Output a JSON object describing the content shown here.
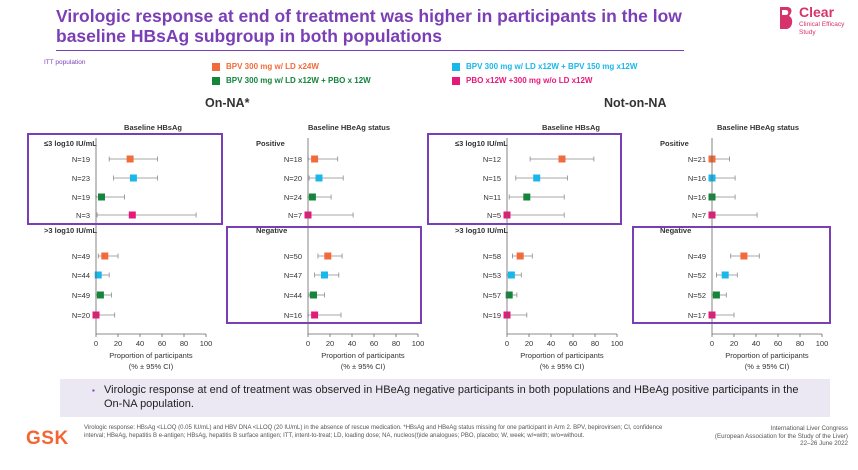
{
  "slide": {
    "title": "Virologic response at end of treatment was higher in participants in the low baseline HBsAg subgroup in both populations",
    "itt_label": "ITT population",
    "callout_bullet": "▪",
    "callout_text": "Virologic response at end of treatment was observed in HBeAg negative participants in both populations and HBeAg positive participants in the On-NA population.",
    "footnote": "Virologic response: HBsAg <LLOQ (0.05 IU/mL) and HBV DNA <LLOQ (20 IU/mL) in the absence of rescue medication. *HBsAg and HBeAg status missing for one participant in Arm 2. BPV, bepirovirsen; CI, confidence interval; HBeAg, hepatitis B e-antigen; HBsAg, hepatitis B surface antigen; ITT, intent-to-treat; LD, loading dose; NA, nucleos(t)ide analogues; PBO, placebo; W, week; w/=with; w/o=without.",
    "gsk_logo": "GSK",
    "congress_line1": "International Liver Congress",
    "congress_line2": "(European Association for the Study of the Liver)",
    "congress_line3": "22–26 June 2022",
    "brand_name": "Clear",
    "brand_sub": "Clinical Efficacy Study"
  },
  "colors": {
    "arm1": "#f26b3a",
    "arm2": "#1ab7ea",
    "arm3": "#14853b",
    "arm4": "#e6197a",
    "purple": "#7b3fb5",
    "brand": "#d6336c"
  },
  "legend": [
    {
      "label": "BPV 300 mg w/ LD x24W",
      "color_key": "arm1"
    },
    {
      "label": "BPV 300 mg w/ LD x12W + BPV 150 mg x12W",
      "color_key": "arm2"
    },
    {
      "label": "BPV 300 mg w/ LD x12W + PBO x 12W",
      "color_key": "arm3"
    },
    {
      "label": "PBO x12W +300 mg w/o LD x12W",
      "color_key": "arm4"
    }
  ],
  "chart_data": {
    "type": "forest",
    "x_label_line1": "Proportion of participants",
    "x_label_line2": "(% ± 95% CI)",
    "x_ticks": [
      "0",
      "20",
      "40",
      "60",
      "80",
      "100"
    ],
    "xlim": [
      0,
      100
    ],
    "populations": [
      {
        "name": "On-NA*",
        "panels": [
          {
            "title": "Baseline HBsAg",
            "groups": [
              {
                "label": "≤3 log10 IU/mL",
                "highlighted": true,
                "rows": [
                  {
                    "n": "N=19",
                    "arm": "arm1",
                    "value": 31,
                    "lo": 12,
                    "hi": 56
                  },
                  {
                    "n": "N=23",
                    "arm": "arm2",
                    "value": 34,
                    "lo": 16,
                    "hi": 56
                  },
                  {
                    "n": "N=19",
                    "arm": "arm3",
                    "value": 5,
                    "lo": 0,
                    "hi": 26
                  },
                  {
                    "n": "N=3",
                    "arm": "arm4",
                    "value": 33,
                    "lo": 1,
                    "hi": 91
                  }
                ]
              },
              {
                "label": ">3 log10 IU/mL",
                "highlighted": false,
                "rows": [
                  {
                    "n": "N=49",
                    "arm": "arm1",
                    "value": 8,
                    "lo": 2,
                    "hi": 20
                  },
                  {
                    "n": "N=44",
                    "arm": "arm2",
                    "value": 2,
                    "lo": 0,
                    "hi": 12
                  },
                  {
                    "n": "N=49",
                    "arm": "arm3",
                    "value": 4,
                    "lo": 0,
                    "hi": 14
                  },
                  {
                    "n": "N=20",
                    "arm": "arm4",
                    "value": 0,
                    "lo": 0,
                    "hi": 17
                  }
                ]
              }
            ]
          },
          {
            "title": "Baseline HBeAg status",
            "groups": [
              {
                "label": "Positive",
                "highlighted": false,
                "rows": [
                  {
                    "n": "N=18",
                    "arm": "arm1",
                    "value": 6,
                    "lo": 0,
                    "hi": 27
                  },
                  {
                    "n": "N=20",
                    "arm": "arm2",
                    "value": 10,
                    "lo": 1,
                    "hi": 32
                  },
                  {
                    "n": "N=24",
                    "arm": "arm3",
                    "value": 4,
                    "lo": 0,
                    "hi": 21
                  },
                  {
                    "n": "N=7",
                    "arm": "arm4",
                    "value": 0,
                    "lo": 0,
                    "hi": 41
                  }
                ]
              },
              {
                "label": "Negative",
                "highlighted": true,
                "rows": [
                  {
                    "n": "N=50",
                    "arm": "arm1",
                    "value": 18,
                    "lo": 9,
                    "hi": 31
                  },
                  {
                    "n": "N=47",
                    "arm": "arm2",
                    "value": 15,
                    "lo": 6,
                    "hi": 28
                  },
                  {
                    "n": "N=44",
                    "arm": "arm3",
                    "value": 5,
                    "lo": 1,
                    "hi": 15
                  },
                  {
                    "n": "N=16",
                    "arm": "arm4",
                    "value": 6,
                    "lo": 0,
                    "hi": 30
                  }
                ]
              }
            ]
          }
        ]
      },
      {
        "name": "Not-on-NA",
        "panels": [
          {
            "title": "Baseline HBsAg",
            "groups": [
              {
                "label": "≤3 log10 IU/mL",
                "highlighted": true,
                "rows": [
                  {
                    "n": "N=12",
                    "arm": "arm1",
                    "value": 50,
                    "lo": 21,
                    "hi": 79
                  },
                  {
                    "n": "N=15",
                    "arm": "arm2",
                    "value": 27,
                    "lo": 8,
                    "hi": 55
                  },
                  {
                    "n": "N=11",
                    "arm": "arm3",
                    "value": 18,
                    "lo": 2,
                    "hi": 52
                  },
                  {
                    "n": "N=5",
                    "arm": "arm4",
                    "value": 0,
                    "lo": 0,
                    "hi": 52
                  }
                ]
              },
              {
                "label": ">3 log10 IU/mL",
                "highlighted": false,
                "rows": [
                  {
                    "n": "N=58",
                    "arm": "arm1",
                    "value": 12,
                    "lo": 5,
                    "hi": 23
                  },
                  {
                    "n": "N=53",
                    "arm": "arm2",
                    "value": 4,
                    "lo": 0,
                    "hi": 13
                  },
                  {
                    "n": "N=57",
                    "arm": "arm3",
                    "value": 2,
                    "lo": 0,
                    "hi": 9
                  },
                  {
                    "n": "N=19",
                    "arm": "arm4",
                    "value": 0,
                    "lo": 0,
                    "hi": 18
                  }
                ]
              }
            ]
          },
          {
            "title": "Baseline HBeAg status",
            "groups": [
              {
                "label": "Positive",
                "highlighted": false,
                "rows": [
                  {
                    "n": "N=21",
                    "arm": "arm1",
                    "value": 0,
                    "lo": 0,
                    "hi": 16
                  },
                  {
                    "n": "N=16",
                    "arm": "arm2",
                    "value": 0,
                    "lo": 0,
                    "hi": 21
                  },
                  {
                    "n": "N=16",
                    "arm": "arm3",
                    "value": 0,
                    "lo": 0,
                    "hi": 21
                  },
                  {
                    "n": "N=7",
                    "arm": "arm4",
                    "value": 0,
                    "lo": 0,
                    "hi": 41
                  }
                ]
              },
              {
                "label": "Negative",
                "highlighted": true,
                "rows": [
                  {
                    "n": "N=49",
                    "arm": "arm1",
                    "value": 29,
                    "lo": 17,
                    "hi": 43
                  },
                  {
                    "n": "N=52",
                    "arm": "arm2",
                    "value": 12,
                    "lo": 4,
                    "hi": 23
                  },
                  {
                    "n": "N=52",
                    "arm": "arm3",
                    "value": 4,
                    "lo": 0,
                    "hi": 13
                  },
                  {
                    "n": "N=17",
                    "arm": "arm4",
                    "value": 0,
                    "lo": 0,
                    "hi": 20
                  }
                ]
              }
            ]
          }
        ]
      }
    ]
  }
}
